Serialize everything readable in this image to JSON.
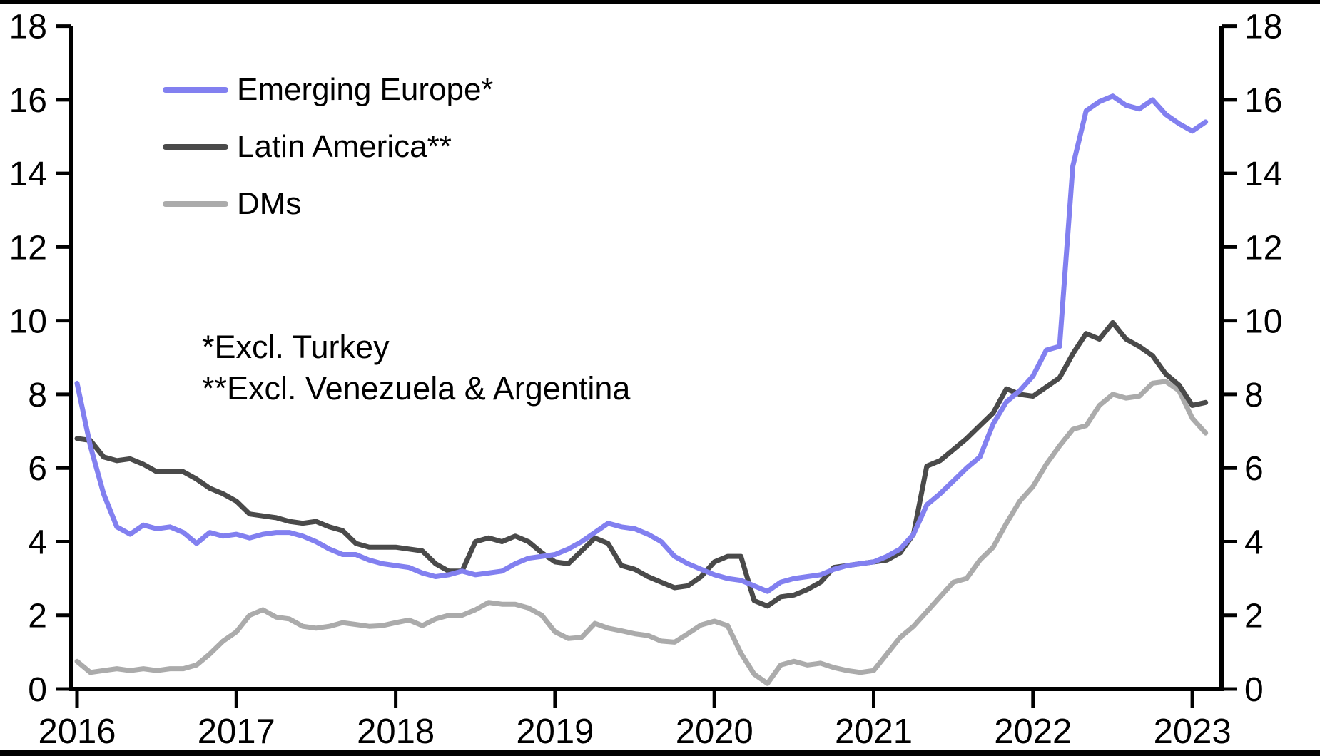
{
  "chart_data": {
    "type": "line",
    "title": "",
    "xlabel": "",
    "ylabel": "",
    "frequency": "monthly",
    "start": "2016-01",
    "end": "2023-02",
    "xlim_years": [
      2016,
      2023.1
    ],
    "ylim": [
      0,
      18
    ],
    "grid": false,
    "legend_position": "top-left",
    "axis_color": "#000000",
    "background_color": "#ffffff",
    "y_ticks": [
      0,
      2,
      4,
      6,
      8,
      10,
      12,
      14,
      16,
      18
    ],
    "x_tick_labels": [
      "2016",
      "2017",
      "2018",
      "2019",
      "2020",
      "2021",
      "2022",
      "2023"
    ],
    "annotations": [
      "*Excl. Turkey",
      "**Excl. Venezuela & Argentina"
    ],
    "series": [
      {
        "name": "Emerging Europe*",
        "color": "#8280f0",
        "values": [
          8.3,
          6.6,
          5.3,
          4.4,
          4.2,
          4.45,
          4.35,
          4.4,
          4.25,
          3.95,
          4.25,
          4.15,
          4.2,
          4.1,
          4.2,
          4.25,
          4.25,
          4.15,
          4.0,
          3.8,
          3.65,
          3.65,
          3.5,
          3.4,
          3.35,
          3.3,
          3.15,
          3.05,
          3.1,
          3.2,
          3.1,
          3.15,
          3.2,
          3.4,
          3.55,
          3.6,
          3.65,
          3.8,
          4.0,
          4.25,
          4.5,
          4.4,
          4.35,
          4.2,
          4.0,
          3.6,
          3.4,
          3.25,
          3.1,
          3.0,
          2.95,
          2.8,
          2.65,
          2.9,
          3.0,
          3.05,
          3.1,
          3.25,
          3.35,
          3.4,
          3.45,
          3.6,
          3.8,
          4.2,
          5.0,
          5.3,
          5.65,
          6.0,
          6.3,
          7.2,
          7.8,
          8.1,
          8.5,
          9.2,
          9.3,
          14.2,
          15.7,
          15.95,
          16.1,
          15.85,
          15.75,
          16.0,
          15.6,
          15.35,
          15.15,
          15.4
        ]
      },
      {
        "name": "Latin America**",
        "color": "#4a4a4a",
        "values": [
          6.8,
          6.75,
          6.3,
          6.2,
          6.25,
          6.1,
          5.9,
          5.9,
          5.9,
          5.7,
          5.45,
          5.3,
          5.1,
          4.75,
          4.7,
          4.65,
          4.55,
          4.5,
          4.55,
          4.4,
          4.3,
          3.95,
          3.85,
          3.85,
          3.85,
          3.8,
          3.75,
          3.4,
          3.2,
          3.2,
          4.0,
          4.1,
          4.0,
          4.15,
          4.0,
          3.7,
          3.45,
          3.4,
          3.75,
          4.1,
          3.95,
          3.35,
          3.25,
          3.05,
          2.9,
          2.75,
          2.8,
          3.05,
          3.45,
          3.6,
          3.6,
          2.4,
          2.25,
          2.5,
          2.55,
          2.7,
          2.9,
          3.3,
          3.35,
          3.4,
          3.45,
          3.5,
          3.7,
          4.2,
          6.05,
          6.2,
          6.5,
          6.8,
          7.15,
          7.5,
          8.15,
          8.0,
          7.95,
          8.2,
          8.45,
          9.1,
          9.65,
          9.5,
          9.95,
          9.5,
          9.3,
          9.05,
          8.55,
          8.25,
          7.7,
          7.78
        ]
      },
      {
        "name": "DMs",
        "color": "#ababab",
        "values": [
          0.75,
          0.45,
          0.5,
          0.55,
          0.5,
          0.55,
          0.5,
          0.55,
          0.55,
          0.65,
          0.95,
          1.3,
          1.55,
          2.0,
          2.15,
          1.95,
          1.9,
          1.7,
          1.65,
          1.7,
          1.8,
          1.75,
          1.7,
          1.72,
          1.8,
          1.87,
          1.72,
          1.9,
          2.0,
          2.0,
          2.15,
          2.35,
          2.3,
          2.3,
          2.2,
          2.0,
          1.55,
          1.37,
          1.4,
          1.78,
          1.65,
          1.58,
          1.5,
          1.45,
          1.3,
          1.27,
          1.5,
          1.74,
          1.84,
          1.72,
          0.97,
          0.4,
          0.15,
          0.65,
          0.75,
          0.65,
          0.7,
          0.58,
          0.5,
          0.45,
          0.5,
          0.95,
          1.4,
          1.7,
          2.1,
          2.5,
          2.9,
          3.0,
          3.5,
          3.85,
          4.5,
          5.1,
          5.5,
          6.1,
          6.6,
          7.05,
          7.15,
          7.7,
          8.0,
          7.9,
          7.95,
          8.3,
          8.35,
          8.1,
          7.35,
          6.95
        ]
      }
    ]
  }
}
